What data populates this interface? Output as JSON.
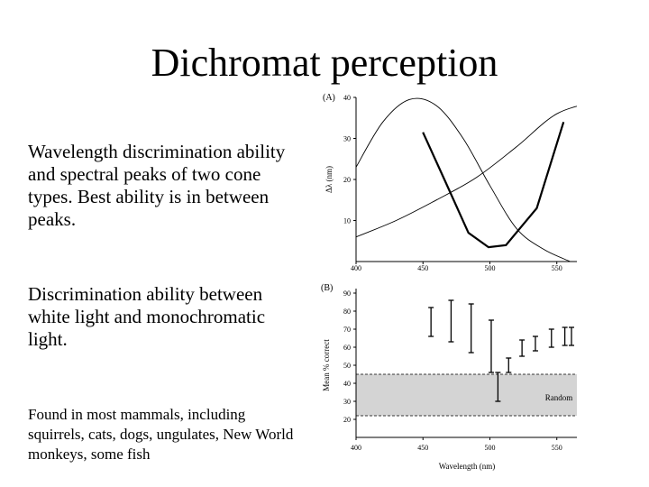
{
  "slide": {
    "title": "Dichromat perception",
    "text1": "Wavelength discrimination ability and spectral peaks of two cone types.  Best ability is in between peaks.",
    "text2": "Discrimination ability between white light and monochromatic light.",
    "text3": "Found in most mammals, including squirrels, cats, dogs, ungulates, New World monkeys, some fish"
  },
  "chart_data": [
    {
      "type": "line",
      "panel_label": "(A)",
      "ylabel": "Δλ (nm)",
      "xlim": [
        400,
        565
      ],
      "ylim": [
        0,
        40
      ],
      "xticks": [
        400,
        450,
        500,
        550
      ],
      "yticks": [
        10,
        20,
        30,
        40
      ],
      "series": [
        {
          "x": [
            450,
            466,
            484,
            499,
            512,
            535,
            555
          ],
          "y": [
            31.5,
            20,
            7,
            3.5,
            4,
            13,
            34
          ]
        },
        {
          "x": [
            400,
            430,
            460,
            490,
            520,
            550,
            580
          ],
          "y": [
            6,
            10,
            15,
            20.5,
            28,
            36,
            39
          ]
        },
        {
          "x": [
            400,
            420,
            440,
            460,
            480,
            500,
            520,
            540,
            560
          ],
          "y": [
            23,
            34,
            39.5,
            38,
            30,
            18.5,
            8,
            3,
            0
          ]
        }
      ]
    },
    {
      "type": "errorbar",
      "panel_label": "(B)",
      "xlabel": "Wavelength (nm)",
      "ylabel": "Mean % correct",
      "xlim": [
        400,
        565
      ],
      "ylim": [
        10,
        90
      ],
      "xticks": [
        400,
        450,
        500,
        550
      ],
      "yticks": [
        20,
        30,
        40,
        50,
        60,
        70,
        80,
        90
      ],
      "random_band": [
        22,
        45
      ],
      "random_label": "Random",
      "points": [
        {
          "x": 456,
          "low": 66,
          "high": 82
        },
        {
          "x": 471,
          "low": 63,
          "high": 86
        },
        {
          "x": 486,
          "low": 57,
          "high": 84
        },
        {
          "x": 501,
          "low": 46,
          "high": 75
        },
        {
          "x": 506,
          "low": 30,
          "high": 46
        },
        {
          "x": 514,
          "low": 46,
          "high": 54
        },
        {
          "x": 524,
          "low": 55,
          "high": 64
        },
        {
          "x": 534,
          "low": 58,
          "high": 66
        },
        {
          "x": 546,
          "low": 60,
          "high": 70
        },
        {
          "x": 556,
          "low": 61,
          "high": 71
        },
        {
          "x": 566,
          "low": 61,
          "high": 71
        }
      ]
    }
  ]
}
